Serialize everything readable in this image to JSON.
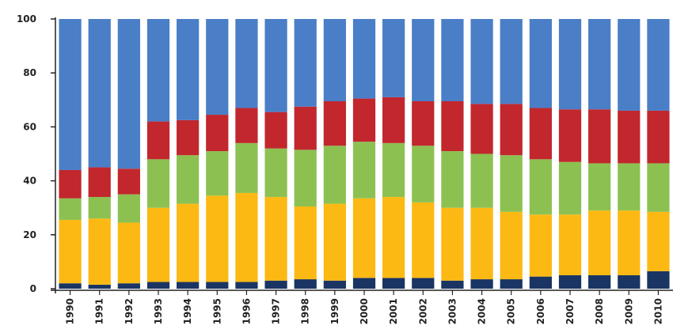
{
  "chart_data": {
    "type": "bar",
    "stacked": true,
    "categories": [
      "1990",
      "1991",
      "1992",
      "1993",
      "1994",
      "1995",
      "1996",
      "1997",
      "1998",
      "1999",
      "2000",
      "2001",
      "2002",
      "2003",
      "2004",
      "2005",
      "2006",
      "2007",
      "2008",
      "2009",
      "2010"
    ],
    "series": [
      {
        "color": "#1a3563",
        "values": [
          2,
          1.5,
          2,
          2.5,
          2.5,
          2.5,
          2.5,
          3,
          3.5,
          3,
          4,
          4,
          4,
          3,
          3.5,
          3.5,
          4.5,
          5,
          5,
          5,
          6.5
        ]
      },
      {
        "color": "#fdb913",
        "values": [
          23.5,
          24.5,
          22.5,
          27.5,
          29,
          32,
          33,
          31,
          27,
          28.5,
          29.5,
          30,
          28,
          27,
          26.5,
          25,
          23,
          22.5,
          24,
          24,
          22
        ]
      },
      {
        "color": "#8cc152",
        "values": [
          8,
          8,
          10.5,
          18,
          18,
          16.5,
          18.5,
          18,
          21,
          21.5,
          21,
          20,
          21,
          21,
          20,
          21,
          20.5,
          19.5,
          17.5,
          17.5,
          18
        ]
      },
      {
        "color": "#c1272d",
        "values": [
          10.5,
          11,
          9.5,
          14,
          13,
          13.5,
          13,
          13.5,
          16,
          16.5,
          16,
          17,
          16.5,
          18.5,
          18.5,
          19,
          19,
          19.5,
          20,
          19.5,
          19.5
        ]
      },
      {
        "color": "#4a7ec7",
        "values": [
          56,
          55,
          55.5,
          38,
          37.5,
          35.5,
          33,
          34.5,
          32.5,
          30.5,
          29.5,
          29,
          30.5,
          30.5,
          31.5,
          31.5,
          33,
          33.5,
          33.5,
          34,
          34
        ]
      }
    ],
    "ylim": [
      0,
      100
    ],
    "yticks": [
      "0",
      "20",
      "40",
      "60",
      "80",
      "100"
    ],
    "grid": false,
    "legend": "none"
  }
}
